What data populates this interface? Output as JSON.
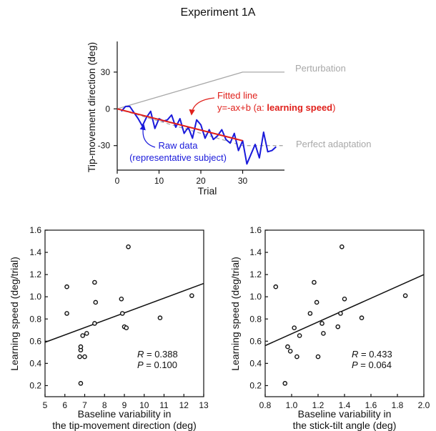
{
  "title": "Experiment 1A",
  "chart_data": [
    {
      "type": "line",
      "xlabel": "Trial",
      "ylabel": "Tip-movement direction (deg)",
      "xlim": [
        0,
        40
      ],
      "ylim": [
        -50,
        55
      ],
      "xticks": [
        0,
        10,
        20,
        30
      ],
      "yticks": [
        30,
        0,
        -30
      ],
      "series": [
        {
          "name": "Raw data (representative subject)",
          "color": "#1a1adb",
          "x": [
            1,
            2,
            3,
            4,
            5,
            6,
            7,
            8,
            9,
            10,
            11,
            12,
            13,
            14,
            15,
            16,
            17,
            18,
            19,
            20,
            21,
            22,
            23,
            24,
            25,
            26,
            27,
            28,
            29,
            30,
            31,
            32,
            33,
            34,
            35,
            36,
            37,
            38
          ],
          "y": [
            -2,
            2,
            2,
            -3,
            -8,
            -14,
            -7,
            -2,
            -16,
            -8,
            -10,
            -9,
            -5,
            -15,
            -8,
            -20,
            -15,
            -24,
            -9,
            -13,
            -24,
            -17,
            -25,
            -22,
            -17,
            -25,
            -28,
            -20,
            -34,
            -26,
            -45,
            -37,
            -29,
            -40,
            -19,
            -35,
            -34,
            -31
          ]
        },
        {
          "name": "Fitted line",
          "color": "#e0201b",
          "x": [
            0,
            30
          ],
          "y": [
            0,
            -26
          ]
        },
        {
          "name": "Perturbation",
          "color": "#a8a8a8",
          "x": [
            0,
            30,
            40
          ],
          "y": [
            0,
            30,
            30
          ]
        },
        {
          "name": "Perfect adaptation",
          "color": "#a8a8a8",
          "dashed": true,
          "x": [
            0,
            30,
            40
          ],
          "y": [
            0,
            -30,
            -30
          ]
        }
      ],
      "annotations": {
        "perturbation": "Perturbation",
        "perfect_adaptation": "Perfect adaptation",
        "fitted_line": "Fitted line",
        "equation_prefix": "y=-ax+b (a: ",
        "equation_bold": "learning speed",
        "equation_suffix": ")",
        "raw_data_1": "Raw data",
        "raw_data_2": "(representative subject)"
      }
    },
    {
      "type": "scatter",
      "xlabel_line1": "Baseline variability in",
      "xlabel_line2": "the tip-movement direction (deg)",
      "ylabel": "Learning speed (deg/trial)",
      "xlim": [
        5,
        13
      ],
      "ylim": [
        0.1,
        1.6
      ],
      "xticks": [
        5,
        6,
        7,
        8,
        9,
        10,
        11,
        12,
        13
      ],
      "yticks": [
        0.2,
        0.4,
        0.6,
        0.8,
        1.0,
        1.2,
        1.4,
        1.6
      ],
      "ytick_labels": [
        "0.2",
        "0.4",
        "0.6",
        "0.8",
        "1.0",
        "1.2",
        "1.4",
        "1.6"
      ],
      "points": [
        [
          6.1,
          1.09
        ],
        [
          6.1,
          0.85
        ],
        [
          6.8,
          0.22
        ],
        [
          6.75,
          0.46
        ],
        [
          6.8,
          0.52
        ],
        [
          6.8,
          0.55
        ],
        [
          6.9,
          0.65
        ],
        [
          7.0,
          0.46
        ],
        [
          7.1,
          0.67
        ],
        [
          7.5,
          1.13
        ],
        [
          7.5,
          0.76
        ],
        [
          7.55,
          0.95
        ],
        [
          8.85,
          0.98
        ],
        [
          8.9,
          0.85
        ],
        [
          9.0,
          0.73
        ],
        [
          9.1,
          0.72
        ],
        [
          9.2,
          1.45
        ],
        [
          10.8,
          0.81
        ],
        [
          12.4,
          1.01
        ]
      ],
      "fit": {
        "x": [
          5,
          13
        ],
        "y": [
          0.59,
          1.12
        ]
      },
      "stats": {
        "R_label": "R",
        "R_value": " = 0.388",
        "P_label": "P",
        "P_value": " = 0.100"
      }
    },
    {
      "type": "scatter",
      "xlabel_line1": "Baseline variability in",
      "xlabel_line2": "the stick-tilt angle (deg)",
      "ylabel": "Learning speed (deg/trial)",
      "xlim": [
        0.8,
        2.0
      ],
      "ylim": [
        0.1,
        1.6
      ],
      "xticks": [
        0.8,
        1.0,
        1.2,
        1.4,
        1.6,
        1.8,
        2.0
      ],
      "xtick_labels": [
        "0.8",
        "1.0",
        "1.2",
        "1.4",
        "1.6",
        "1.8",
        "2.0"
      ],
      "yticks": [
        0.2,
        0.4,
        0.6,
        0.8,
        1.0,
        1.2,
        1.4,
        1.6
      ],
      "ytick_labels": [
        "0.2",
        "0.4",
        "0.6",
        "0.8",
        "1.0",
        "1.2",
        "1.4",
        "1.6"
      ],
      "points": [
        [
          0.88,
          1.09
        ],
        [
          0.95,
          0.22
        ],
        [
          0.97,
          0.55
        ],
        [
          0.99,
          0.51
        ],
        [
          1.02,
          0.72
        ],
        [
          1.04,
          0.46
        ],
        [
          1.06,
          0.65
        ],
        [
          1.14,
          0.85
        ],
        [
          1.17,
          1.13
        ],
        [
          1.19,
          0.95
        ],
        [
          1.2,
          0.46
        ],
        [
          1.23,
          0.76
        ],
        [
          1.24,
          0.67
        ],
        [
          1.35,
          0.73
        ],
        [
          1.37,
          0.85
        ],
        [
          1.38,
          1.45
        ],
        [
          1.4,
          0.98
        ],
        [
          1.53,
          0.81
        ],
        [
          1.86,
          1.01
        ]
      ],
      "fit": {
        "x": [
          0.8,
          2.0
        ],
        "y": [
          0.56,
          1.2
        ]
      },
      "stats": {
        "R_label": "R",
        "R_value": " = 0.433",
        "P_label": "P",
        "P_value": " = 0.064"
      }
    }
  ]
}
